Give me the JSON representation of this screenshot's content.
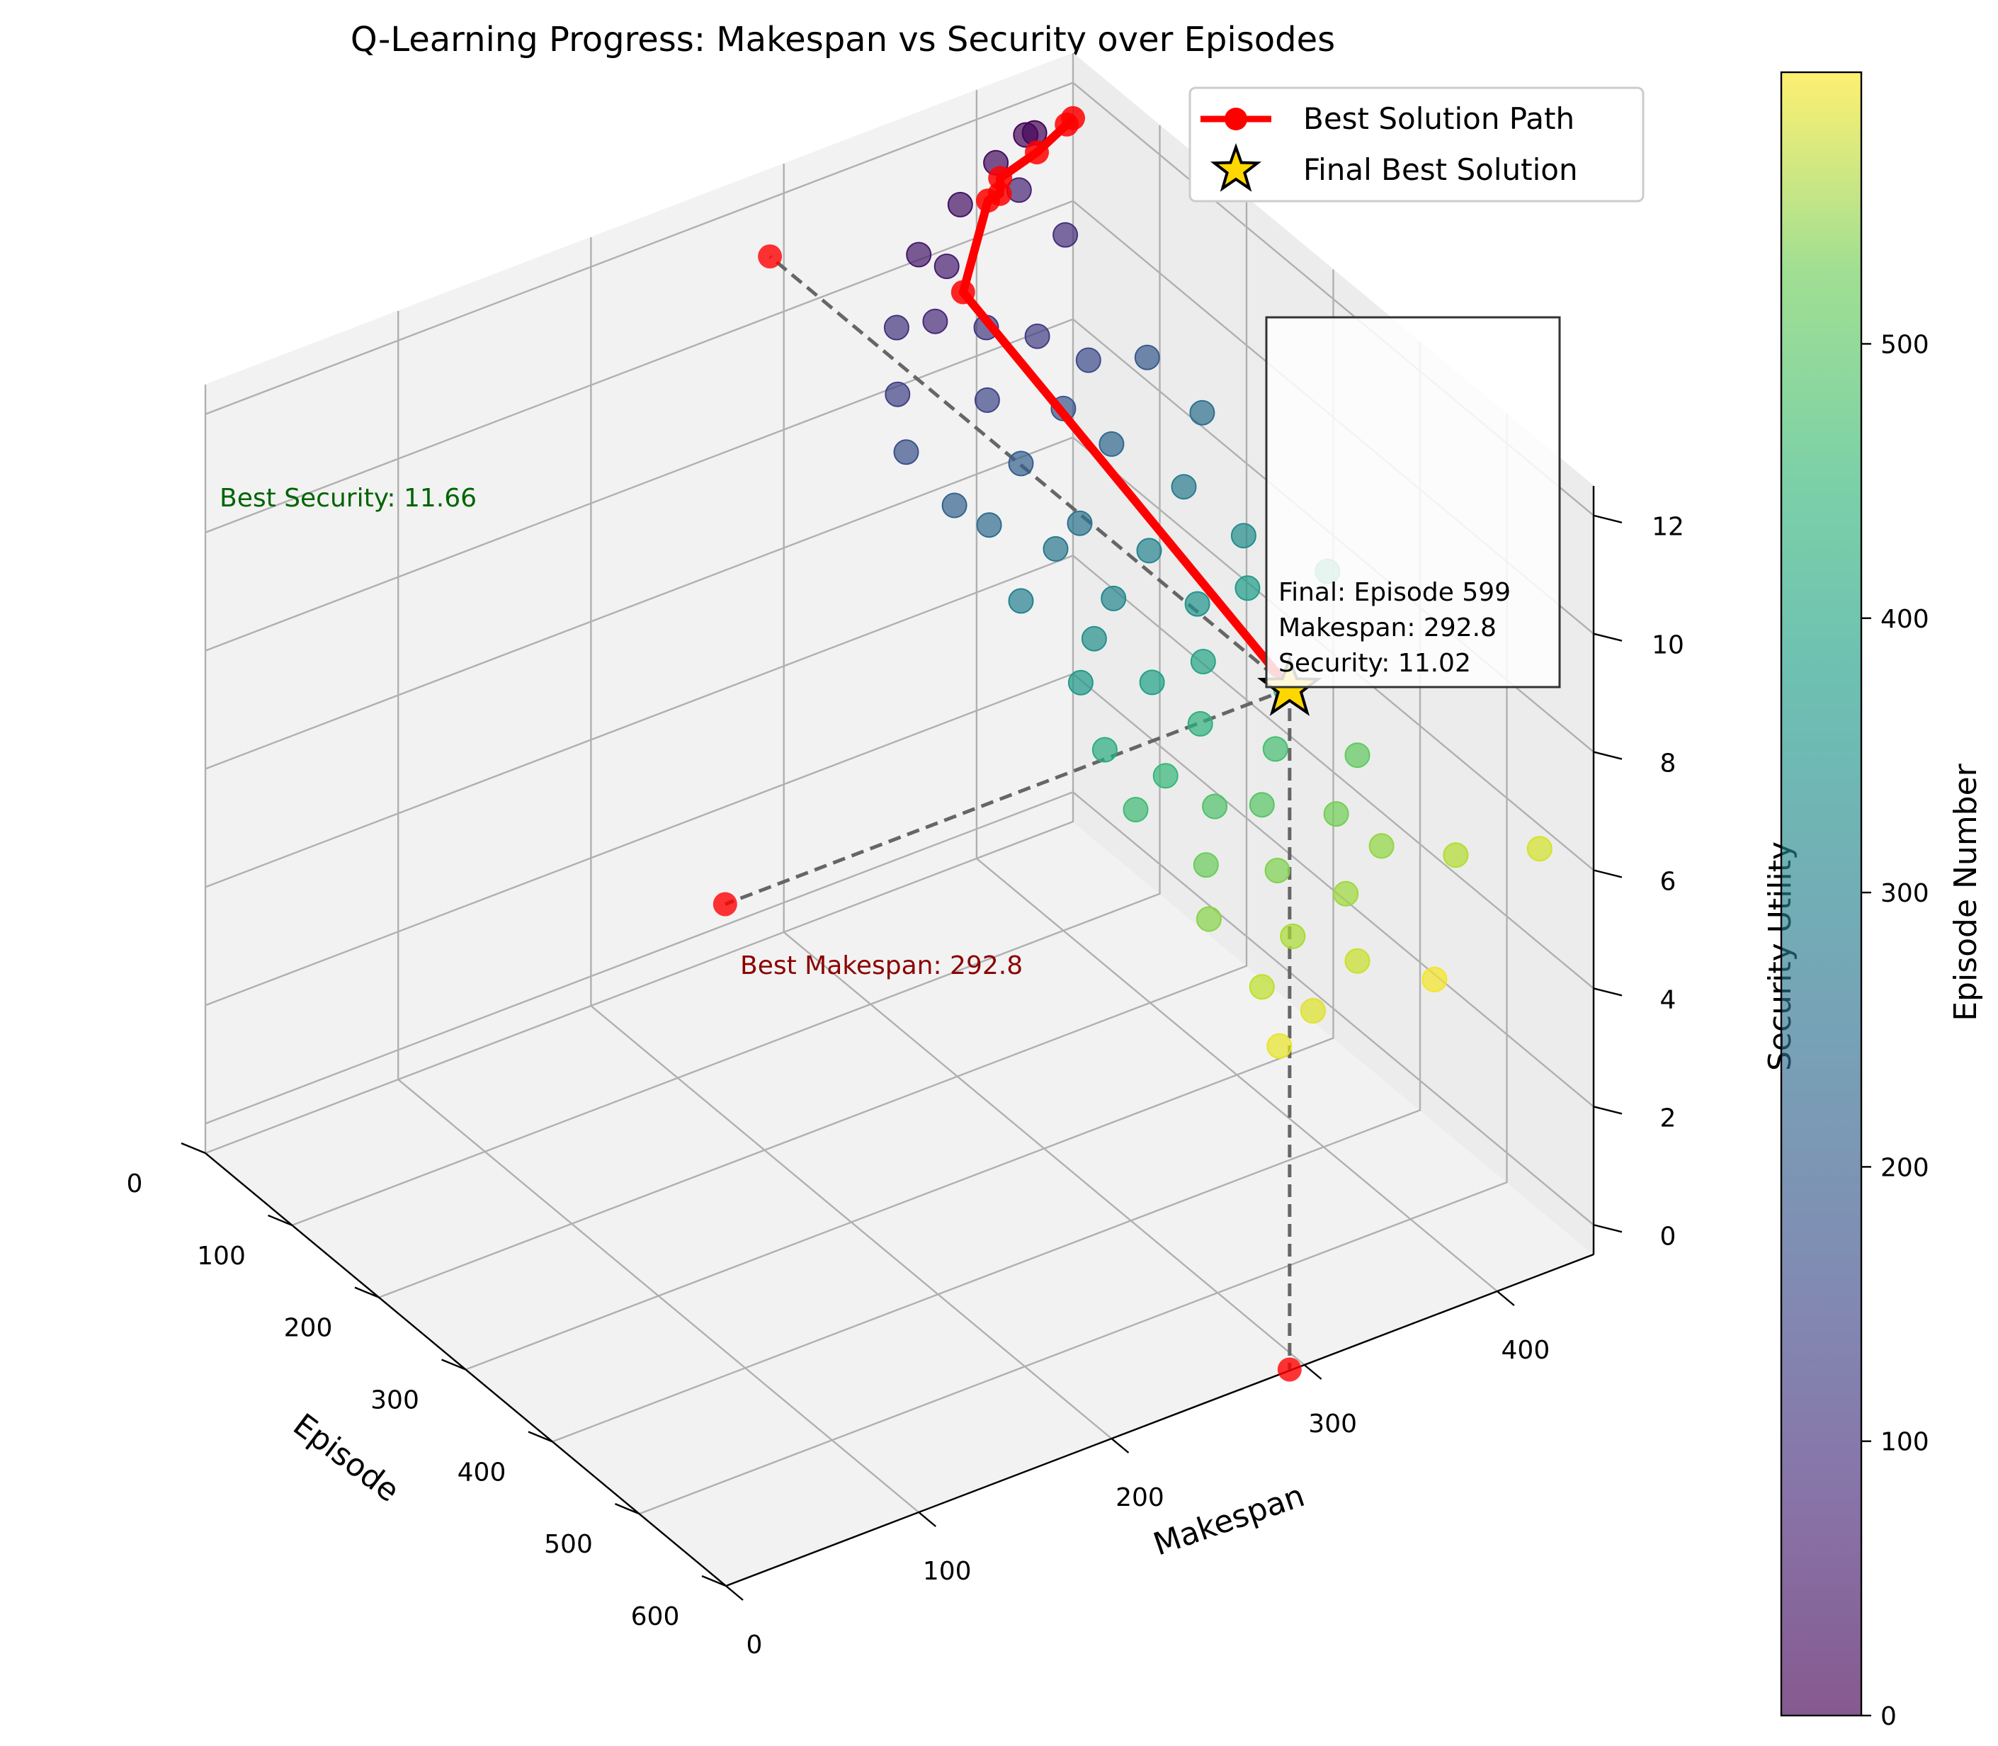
{
  "chart_data": {
    "type": "scatter",
    "title": "Q-Learning Progress: Makespan vs Security over Episodes",
    "axes": {
      "x": {
        "label": "Episode",
        "range": [
          0,
          600
        ],
        "ticks": [
          0,
          100,
          200,
          300,
          400,
          500,
          600
        ]
      },
      "y": {
        "label": "Makespan",
        "range": [
          0,
          450
        ],
        "ticks": [
          0,
          100,
          200,
          300,
          400
        ]
      },
      "z": {
        "label": "Security Utility",
        "range": [
          -0.5,
          12.5
        ],
        "ticks": [
          0,
          2,
          4,
          6,
          8,
          10,
          12
        ]
      }
    },
    "colorbar": {
      "label": "Episode Number",
      "range": [
        0,
        599
      ],
      "ticks": [
        0,
        100,
        200,
        300,
        400,
        500
      ],
      "colormap": "viridis"
    },
    "legend": {
      "placement": "top-right",
      "entries": [
        {
          "label": "Best Solution Path",
          "marker": "line-circle",
          "color": "#ff0000"
        },
        {
          "label": "Final Best Solution",
          "marker": "star",
          "color": "#ffd700"
        }
      ]
    },
    "grid": true,
    "scatter_points": [
      {
        "episode": 0,
        "makespan": 430,
        "security": 11.4
      },
      {
        "episode": 10,
        "makespan": 421,
        "security": 11.6
      },
      {
        "episode": 20,
        "makespan": 401,
        "security": 11.5
      },
      {
        "episode": 30,
        "makespan": 378,
        "security": 11.2
      },
      {
        "episode": 40,
        "makespan": 352,
        "security": 10.8
      },
      {
        "episode": 50,
        "makespan": 362,
        "security": 10.6
      },
      {
        "episode": 60,
        "makespan": 395,
        "security": 11.6
      },
      {
        "episode": 70,
        "makespan": 347,
        "security": 10.1
      },
      {
        "episode": 80,
        "makespan": 410,
        "security": 10.9
      },
      {
        "episode": 90,
        "makespan": 318,
        "security": 10.6
      },
      {
        "episode": 100,
        "makespan": 360,
        "security": 10.2
      },
      {
        "episode": 110,
        "makespan": 382,
        "security": 9.9
      },
      {
        "episode": 120,
        "makespan": 305,
        "security": 10.0
      },
      {
        "episode": 130,
        "makespan": 347,
        "security": 9.5
      },
      {
        "episode": 140,
        "makespan": 395,
        "security": 9.7
      },
      {
        "episode": 150,
        "makespan": 296,
        "security": 9.5
      },
      {
        "episode": 160,
        "makespan": 373,
        "security": 9.4
      },
      {
        "episode": 170,
        "makespan": 412,
        "security": 9.9
      },
      {
        "episode": 180,
        "makespan": 342,
        "security": 9.1
      },
      {
        "episode": 190,
        "makespan": 303,
        "security": 9.0
      },
      {
        "episode": 200,
        "makespan": 380,
        "security": 9.2
      },
      {
        "episode": 210,
        "makespan": 312,
        "security": 8.8
      },
      {
        "episode": 220,
        "makespan": 418,
        "security": 9.5
      },
      {
        "episode": 230,
        "makespan": 350,
        "security": 8.6
      },
      {
        "episode": 240,
        "makespan": 333,
        "security": 8.5
      },
      {
        "episode": 250,
        "makespan": 395,
        "security": 8.9
      },
      {
        "episode": 260,
        "makespan": 306,
        "security": 8.2
      },
      {
        "episode": 270,
        "makespan": 368,
        "security": 8.4
      },
      {
        "episode": 280,
        "makespan": 345,
        "security": 8.0
      },
      {
        "episode": 290,
        "makespan": 408,
        "security": 8.4
      },
      {
        "episode": 300,
        "makespan": 326,
        "security": 7.8
      },
      {
        "episode": 310,
        "makespan": 375,
        "security": 7.9
      },
      {
        "episode": 320,
        "makespan": 310,
        "security": 7.5
      },
      {
        "episode": 330,
        "makespan": 392,
        "security": 8.2
      },
      {
        "episode": 340,
        "makespan": 338,
        "security": 7.4
      },
      {
        "episode": 350,
        "makespan": 360,
        "security": 7.6
      },
      {
        "episode": 360,
        "makespan": 420,
        "security": 8.5
      },
      {
        "episode": 370,
        "makespan": 300,
        "security": 7.1
      },
      {
        "episode": 380,
        "makespan": 345,
        "security": 7.1
      },
      {
        "episode": 390,
        "makespan": 385,
        "security": 7.3
      },
      {
        "episode": 400,
        "makespan": 318,
        "security": 6.8
      },
      {
        "episode": 410,
        "makespan": 298,
        "security": 6.6
      },
      {
        "episode": 420,
        "makespan": 366,
        "security": 6.9
      },
      {
        "episode": 430,
        "makespan": 330,
        "security": 6.5
      },
      {
        "episode": 440,
        "makespan": 350,
        "security": 6.4
      },
      {
        "episode": 450,
        "makespan": 395,
        "security": 6.8
      },
      {
        "episode": 460,
        "makespan": 312,
        "security": 6.1
      },
      {
        "episode": 470,
        "makespan": 375,
        "security": 6.3
      },
      {
        "episode": 480,
        "makespan": 340,
        "security": 5.9
      },
      {
        "episode": 490,
        "makespan": 300,
        "security": 5.7
      },
      {
        "episode": 500,
        "makespan": 385,
        "security": 6.0
      },
      {
        "episode": 510,
        "makespan": 362,
        "security": 5.6
      },
      {
        "episode": 520,
        "makespan": 330,
        "security": 5.4
      },
      {
        "episode": 530,
        "makespan": 410,
        "security": 5.9
      },
      {
        "episode": 540,
        "makespan": 305,
        "security": 5.1
      },
      {
        "episode": 550,
        "makespan": 350,
        "security": 5.1
      },
      {
        "episode": 560,
        "makespan": 440,
        "security": 6.0
      },
      {
        "episode": 570,
        "makespan": 318,
        "security": 4.9
      },
      {
        "episode": 580,
        "makespan": 296,
        "security": 4.7
      },
      {
        "episode": 590,
        "makespan": 372,
        "security": 5.0
      },
      {
        "episode": 599,
        "makespan": 292.8,
        "security": 11.02
      }
    ],
    "best_path": [
      {
        "episode": 0,
        "makespan": 450,
        "security": 11.4
      },
      {
        "episode": 15,
        "makespan": 440,
        "security": 11.6
      },
      {
        "episode": 25,
        "makespan": 420,
        "security": 11.5
      },
      {
        "episode": 45,
        "makespan": 392,
        "security": 11.66
      },
      {
        "episode": 60,
        "makespan": 385,
        "security": 11.66
      },
      {
        "episode": 62,
        "makespan": 378,
        "security": 11.66
      },
      {
        "episode": 140,
        "makespan": 330,
        "security": 11.66
      },
      {
        "episode": 599,
        "makespan": 292.8,
        "security": 11.02
      }
    ],
    "final_point": {
      "episode": 599,
      "makespan": 292.8,
      "security": 11.02
    },
    "projections": [
      {
        "episode": 0,
        "makespan": 292.8,
        "security": 11.02
      },
      {
        "episode": 599,
        "makespan": 0,
        "security": 11.02
      },
      {
        "episode": 599,
        "makespan": 292.8,
        "security": -0.5
      }
    ],
    "annotations": [
      {
        "text": "Best Security: 11.66",
        "color": "#006400"
      },
      {
        "text": "Best Makespan: 292.8",
        "color": "#8b0000"
      },
      {
        "lines": [
          "Final: Episode 599",
          "Makespan: 292.8",
          "Security: 11.02"
        ]
      }
    ]
  }
}
